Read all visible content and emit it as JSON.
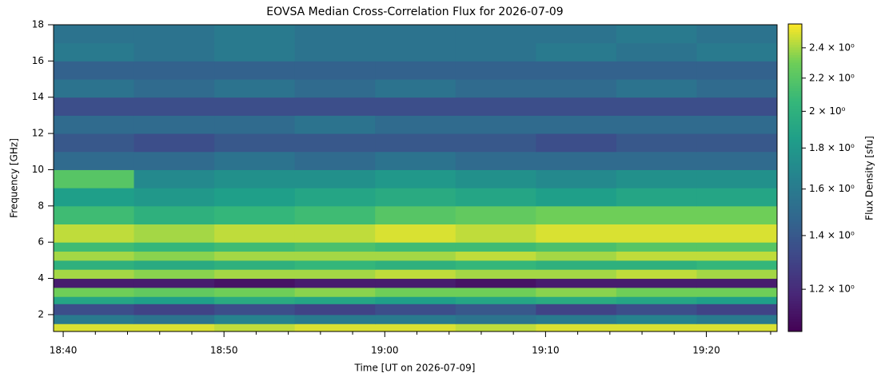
{
  "chart_data": {
    "type": "heatmap",
    "title": "EOVSA Median Cross-Correlation Flux for 2026-07-09",
    "xlabel": "Time [UT on 2026-07-09]",
    "ylabel": "Frequency [GHz]",
    "colorbar_label": "Flux Density [sfu]",
    "colormap": "viridis",
    "x_bins": [
      1119.4,
      1124.4,
      1129.4,
      1134.4,
      1139.4,
      1144.4,
      1149.4,
      1154.4,
      1159.4,
      1164.4
    ],
    "y_bins": [
      1.07,
      1.5,
      2.0,
      2.6,
      3.0,
      3.5,
      4.0,
      4.5,
      5.0,
      5.5,
      6.0,
      7.0,
      8.0,
      9.0,
      10.0,
      11.0,
      12.0,
      13.0,
      14.0,
      15.0,
      16.0,
      17.0,
      18.0
    ],
    "z": [
      [
        2.5,
        2.5,
        2.45,
        2.5,
        2.5,
        2.45,
        2.5,
        2.5,
        2.5
      ],
      [
        1.6,
        1.55,
        1.65,
        1.6,
        1.6,
        1.55,
        1.6,
        1.65,
        1.6
      ],
      [
        1.35,
        1.3,
        1.35,
        1.3,
        1.35,
        1.4,
        1.3,
        1.35,
        1.3
      ],
      [
        1.9,
        1.85,
        1.95,
        1.9,
        1.85,
        1.9,
        1.95,
        1.9,
        1.85
      ],
      [
        2.3,
        2.25,
        2.3,
        2.35,
        2.3,
        2.3,
        2.35,
        2.3,
        2.3
      ],
      [
        1.15,
        1.15,
        1.12,
        1.15,
        1.15,
        1.12,
        1.15,
        1.15,
        1.15
      ],
      [
        2.4,
        2.35,
        2.4,
        2.4,
        2.45,
        2.4,
        2.4,
        2.45,
        2.4
      ],
      [
        2.0,
        1.95,
        2.0,
        2.05,
        2.0,
        2.05,
        2.0,
        2.0,
        2.05
      ],
      [
        2.4,
        2.35,
        2.4,
        2.4,
        2.4,
        2.45,
        2.4,
        2.45,
        2.45
      ],
      [
        2.1,
        2.05,
        2.1,
        2.15,
        2.1,
        2.1,
        2.15,
        2.2,
        2.2
      ],
      [
        2.45,
        2.4,
        2.45,
        2.45,
        2.5,
        2.45,
        2.5,
        2.5,
        2.5
      ],
      [
        2.1,
        2.0,
        2.05,
        2.1,
        2.2,
        2.25,
        2.3,
        2.3,
        2.3
      ],
      [
        1.85,
        1.8,
        1.85,
        1.9,
        1.95,
        1.9,
        1.85,
        1.9,
        1.9
      ],
      [
        2.2,
        1.7,
        1.75,
        1.75,
        1.8,
        1.75,
        1.7,
        1.75,
        1.75
      ],
      [
        1.5,
        1.5,
        1.55,
        1.5,
        1.55,
        1.5,
        1.5,
        1.5,
        1.5
      ],
      [
        1.4,
        1.35,
        1.4,
        1.4,
        1.4,
        1.4,
        1.35,
        1.4,
        1.4
      ],
      [
        1.5,
        1.5,
        1.5,
        1.55,
        1.5,
        1.5,
        1.5,
        1.5,
        1.5
      ],
      [
        1.35,
        1.35,
        1.35,
        1.35,
        1.35,
        1.35,
        1.35,
        1.35,
        1.35
      ],
      [
        1.55,
        1.5,
        1.55,
        1.5,
        1.55,
        1.5,
        1.5,
        1.55,
        1.5
      ],
      [
        1.45,
        1.45,
        1.45,
        1.45,
        1.45,
        1.45,
        1.45,
        1.45,
        1.45
      ],
      [
        1.6,
        1.55,
        1.6,
        1.55,
        1.55,
        1.55,
        1.6,
        1.55,
        1.6
      ],
      [
        1.55,
        1.55,
        1.6,
        1.55,
        1.55,
        1.55,
        1.55,
        1.6,
        1.55
      ]
    ],
    "xlim": [
      1119.4,
      1164.4
    ],
    "ylim": [
      1.07,
      18
    ],
    "xticks": [
      {
        "value": 1120,
        "label": "18:40"
      },
      {
        "value": 1130,
        "label": "18:50"
      },
      {
        "value": 1140,
        "label": "19:00"
      },
      {
        "value": 1150,
        "label": "19:10"
      },
      {
        "value": 1160,
        "label": "19:20"
      }
    ],
    "xminorticks": [
      1122,
      1124,
      1126,
      1128,
      1132,
      1134,
      1136,
      1138,
      1142,
      1144,
      1146,
      1148,
      1152,
      1154,
      1156,
      1158,
      1162,
      1164
    ],
    "yticks": [
      2,
      4,
      6,
      8,
      10,
      12,
      14,
      16,
      18
    ],
    "zscale": "log",
    "zlim": [
      1.063,
      2.57
    ],
    "zticks": [
      {
        "value": 1.2,
        "label": "1.2 × 10⁰"
      },
      {
        "value": 1.4,
        "label": "1.4 × 10⁰"
      },
      {
        "value": 1.6,
        "label": "1.6 × 10⁰"
      },
      {
        "value": 1.8,
        "label": "1.8 × 10⁰"
      },
      {
        "value": 2.0,
        "label": "2 × 10⁰"
      },
      {
        "value": 2.2,
        "label": "2.2 × 10⁰"
      },
      {
        "value": 2.4,
        "label": "2.4 × 10⁰"
      }
    ]
  }
}
